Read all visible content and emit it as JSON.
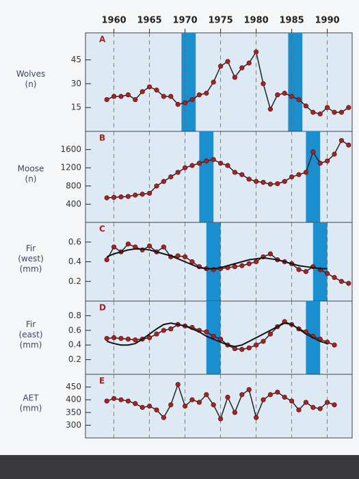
{
  "chart_data": [
    {
      "type": "line",
      "label": "A",
      "ylabel": [
        "Wolves",
        "(n)"
      ],
      "grid": true,
      "xlim": [
        1956,
        1993.5
      ],
      "xticks": [
        1960,
        1965,
        1970,
        1975,
        1980,
        1985,
        1990
      ],
      "ylim": [
        0,
        62
      ],
      "yticks": [
        15,
        30,
        45
      ],
      "bands": [
        [
          1969.5,
          1971.5
        ],
        [
          1984.5,
          1986.5
        ]
      ],
      "band_color": "#1a8fcf",
      "x": [
        1959,
        1960,
        1961,
        1962,
        1963,
        1964,
        1965,
        1966,
        1967,
        1968,
        1969,
        1970,
        1971,
        1972,
        1973,
        1974,
        1975,
        1976,
        1977,
        1978,
        1979,
        1980,
        1981,
        1982,
        1983,
        1984,
        1985,
        1986,
        1987,
        1988,
        1989,
        1990,
        1991,
        1992,
        1993
      ],
      "series": [
        {
          "color": "#b02020",
          "markers": true,
          "values": [
            20,
            22,
            22,
            23,
            20,
            25,
            28,
            26,
            22,
            22,
            17,
            18,
            20,
            23,
            24,
            31,
            41,
            44,
            34,
            40,
            43,
            50,
            30,
            14,
            23,
            24,
            22,
            20,
            16,
            12,
            11,
            15,
            12,
            12,
            15
          ]
        }
      ]
    },
    {
      "type": "line",
      "label": "B",
      "ylabel": [
        "Moose",
        "(n)"
      ],
      "grid": true,
      "xlim": [
        1956,
        1993.5
      ],
      "ylim": [
        0,
        2000
      ],
      "yticks": [
        400,
        800,
        1200,
        1600
      ],
      "bands": [
        [
          1972,
          1974
        ],
        [
          1987,
          1989
        ]
      ],
      "band_color": "#1a8fcf",
      "x": [
        1959,
        1960,
        1961,
        1962,
        1963,
        1964,
        1965,
        1966,
        1967,
        1968,
        1969,
        1970,
        1971,
        1972,
        1973,
        1974,
        1975,
        1976,
        1977,
        1978,
        1979,
        1980,
        1981,
        1982,
        1983,
        1984,
        1985,
        1986,
        1987,
        1988,
        1989,
        1990,
        1991,
        1992,
        1993
      ],
      "series": [
        {
          "color": "#b02020",
          "markers": true,
          "values": [
            540,
            550,
            560,
            570,
            600,
            620,
            640,
            800,
            900,
            1000,
            1100,
            1200,
            1250,
            1300,
            1350,
            1380,
            1300,
            1250,
            1100,
            1050,
            950,
            900,
            880,
            840,
            850,
            900,
            1000,
            1050,
            1100,
            1550,
            1300,
            1350,
            1500,
            1800,
            1700
          ]
        }
      ]
    },
    {
      "type": "line",
      "label": "C",
      "ylabel": [
        "Fir",
        "(west)",
        "(mm)"
      ],
      "grid": true,
      "xlim": [
        1956,
        1993.5
      ],
      "ylim": [
        0,
        0.8
      ],
      "yticks": [
        0.2,
        0.4,
        0.6
      ],
      "bands": [
        [
          1973,
          1975
        ],
        [
          1988,
          1990
        ]
      ],
      "band_color": "#1a8fcf",
      "x": [
        1959,
        1960,
        1961,
        1962,
        1963,
        1964,
        1965,
        1966,
        1967,
        1968,
        1969,
        1970,
        1971,
        1972,
        1973,
        1974,
        1975,
        1976,
        1977,
        1978,
        1979,
        1980,
        1981,
        1982,
        1983,
        1984,
        1985,
        1986,
        1987,
        1988,
        1989,
        1990,
        1991,
        1992,
        1993
      ],
      "series": [
        {
          "color": "#b02020",
          "markers": true,
          "values": [
            0.42,
            0.55,
            0.5,
            0.58,
            0.55,
            0.52,
            0.56,
            0.5,
            0.55,
            0.45,
            0.46,
            0.45,
            0.4,
            0.35,
            0.33,
            0.32,
            0.33,
            0.34,
            0.35,
            0.36,
            0.38,
            0.4,
            0.45,
            0.48,
            0.42,
            0.4,
            0.38,
            0.32,
            0.3,
            0.35,
            0.32,
            0.28,
            0.24,
            0.2,
            0.18
          ]
        },
        {
          "color": "#111111",
          "markers": false,
          "values": [
            0.45,
            0.48,
            0.5,
            0.52,
            0.53,
            0.53,
            0.52,
            0.5,
            0.48,
            0.46,
            0.43,
            0.4,
            0.37,
            0.34,
            0.33,
            0.33,
            0.34,
            0.36,
            0.38,
            0.4,
            0.42,
            0.43,
            0.44,
            0.43,
            0.42,
            0.4,
            0.38,
            0.36,
            0.35,
            0.34,
            0.33,
            0.33,
            null,
            null,
            null
          ]
        }
      ]
    },
    {
      "type": "line",
      "label": "D",
      "ylabel": [
        "Fir",
        "(east)",
        "(mm)"
      ],
      "grid": true,
      "xlim": [
        1956,
        1993.5
      ],
      "ylim": [
        0,
        1
      ],
      "yticks": [
        0.2,
        0.4,
        0.6,
        0.8
      ],
      "bands": [
        [
          1973,
          1975
        ],
        [
          1987,
          1989
        ]
      ],
      "band_color": "#1a8fcf",
      "x": [
        1959,
        1960,
        1961,
        1962,
        1963,
        1964,
        1965,
        1966,
        1967,
        1968,
        1969,
        1970,
        1971,
        1972,
        1973,
        1974,
        1975,
        1976,
        1977,
        1978,
        1979,
        1980,
        1981,
        1982,
        1983,
        1984,
        1985,
        1986,
        1987,
        1988,
        1989,
        1990,
        1991
      ],
      "series": [
        {
          "color": "#b02020",
          "markers": true,
          "values": [
            0.49,
            0.5,
            0.49,
            0.48,
            0.47,
            0.48,
            0.5,
            0.55,
            0.6,
            0.62,
            0.68,
            0.66,
            0.64,
            0.6,
            0.58,
            0.52,
            0.48,
            0.4,
            0.35,
            0.34,
            0.36,
            0.4,
            0.45,
            0.55,
            0.65,
            0.72,
            0.68,
            0.62,
            0.58,
            0.52,
            0.48,
            0.44,
            0.4
          ]
        },
        {
          "color": "#111111",
          "markers": false,
          "values": [
            0.45,
            0.42,
            0.4,
            0.4,
            0.42,
            0.48,
            0.55,
            0.62,
            0.68,
            0.7,
            0.68,
            0.66,
            0.62,
            0.58,
            0.52,
            0.48,
            0.44,
            0.4,
            0.38,
            0.4,
            0.45,
            0.5,
            0.55,
            0.6,
            0.65,
            0.7,
            0.68,
            0.62,
            0.55,
            0.5,
            0.45,
            0.42,
            null
          ]
        }
      ]
    },
    {
      "type": "line",
      "label": "E",
      "ylabel": [
        "AET",
        "(mm)"
      ],
      "grid": true,
      "xlim": [
        1956,
        1993.5
      ],
      "ylim": [
        250,
        500
      ],
      "yticks": [
        300,
        350,
        400,
        450
      ],
      "bands": [],
      "band_color": "#1a8fcf",
      "x": [
        1959,
        1960,
        1961,
        1962,
        1963,
        1964,
        1965,
        1966,
        1967,
        1968,
        1969,
        1970,
        1971,
        1972,
        1973,
        1974,
        1975,
        1976,
        1977,
        1978,
        1979,
        1980,
        1981,
        1982,
        1983,
        1984,
        1985,
        1986,
        1987,
        1988,
        1989,
        1990,
        1991
      ],
      "series": [
        {
          "color": "#b02020",
          "markers": true,
          "values": [
            395,
            405,
            400,
            395,
            385,
            370,
            375,
            360,
            330,
            380,
            460,
            375,
            400,
            390,
            420,
            380,
            325,
            410,
            350,
            420,
            440,
            330,
            400,
            420,
            430,
            410,
            395,
            360,
            390,
            370,
            365,
            390,
            380
          ]
        }
      ]
    }
  ]
}
